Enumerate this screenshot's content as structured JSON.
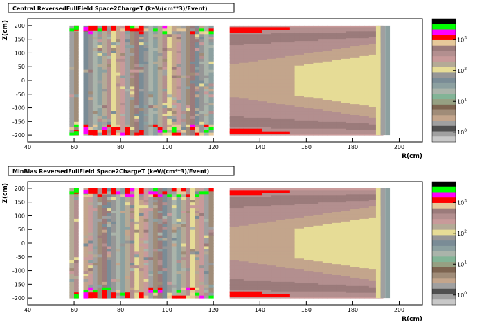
{
  "chart_data": [
    {
      "type": "heatmap",
      "title": "Central ReversedFullField Space2ChargeT (keV/(cm**3)/Event)",
      "xlabel": "R(cm)",
      "ylabel": "Z(cm)",
      "xlim": [
        40,
        210
      ],
      "ylim": [
        -225,
        225
      ],
      "xticks": [
        "40",
        "60",
        "80",
        "100",
        "120",
        "140",
        "160",
        "180",
        "200"
      ],
      "yticks": [
        "200",
        "150",
        "100",
        "50",
        "0",
        "-50",
        "-100",
        "-150",
        "-200"
      ],
      "color_scale": "log",
      "colorbar_labels": [
        "10^3",
        "10^2",
        "10^1",
        "10^0"
      ],
      "palette": [
        "#000000",
        "#00ff00",
        "#ff00ff",
        "#ff0000",
        "#e6c89a",
        "#9b7b7b",
        "#b38f8f",
        "#c89a9a",
        "#b4aa96",
        "#e6dc96",
        "#969696",
        "#7a8c96",
        "#8ca0a0",
        "#aab4aa",
        "#82b496",
        "#96a082",
        "#7d6450",
        "#a08c78",
        "#c3a58c",
        "#a0a0a0",
        "#505050",
        "#a0a0a0",
        "#c8c8c8"
      ]
    },
    {
      "type": "heatmap",
      "title": "MinBias ReversedFullField Space2ChargeT (keV/(cm**3)/Event)",
      "xlabel": "R(cm)",
      "ylabel": "Z(cm)",
      "xlim": [
        40,
        210
      ],
      "ylim": [
        -225,
        225
      ],
      "xticks": [
        "40",
        "60",
        "80",
        "100",
        "120",
        "140",
        "160",
        "180",
        "200"
      ],
      "yticks": [
        "200",
        "150",
        "100",
        "50",
        "0",
        "-50",
        "-100",
        "-150",
        "-200"
      ],
      "color_scale": "log",
      "colorbar_labels": [
        "10^3",
        "10^2",
        "10^1",
        "10^0"
      ],
      "palette": [
        "#000000",
        "#00ff00",
        "#ff00ff",
        "#ff0000",
        "#e6c89a",
        "#9b7b7b",
        "#b38f8f",
        "#c89a9a",
        "#b4aa96",
        "#e6dc96",
        "#969696",
        "#7a8c96",
        "#8ca0a0",
        "#aab4aa",
        "#82b496",
        "#96a082",
        "#7d6450",
        "#a08c78",
        "#c3a58c",
        "#a0a0a0",
        "#505050",
        "#a0a0a0",
        "#c8c8c8"
      ]
    }
  ]
}
